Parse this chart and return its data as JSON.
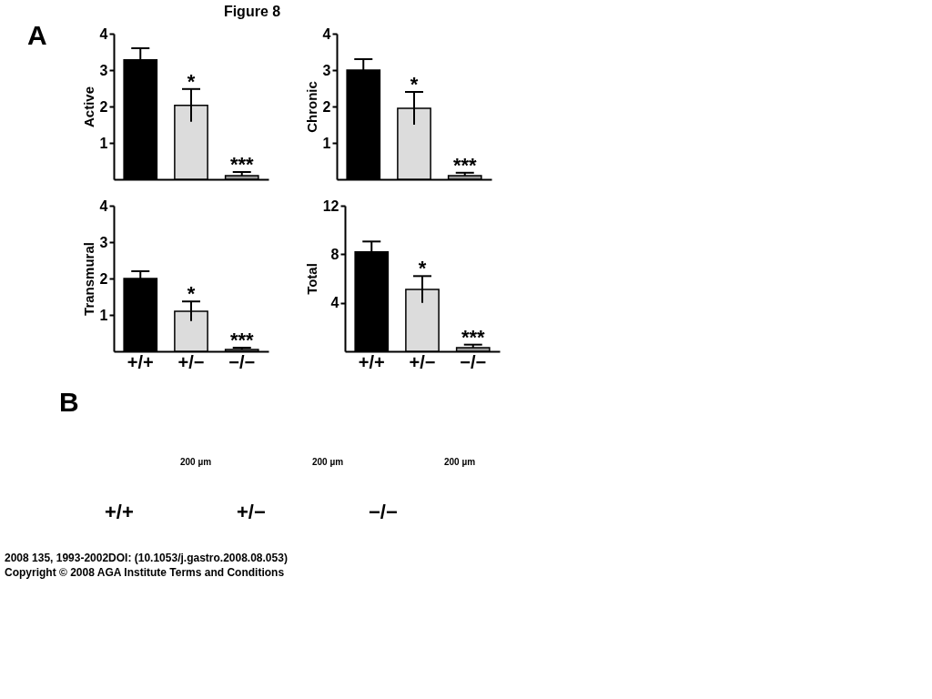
{
  "chart_data": [
    {
      "type": "bar",
      "title": "Figure 8",
      "ylabel": "Active",
      "categories": [
        "+/+",
        "+/−",
        "−/−"
      ],
      "colors": [
        "#000000",
        "#dcdcdc",
        "#999999"
      ],
      "values": [
        3.28,
        2.03,
        0.1
      ],
      "errors": [
        0.32,
        0.45,
        [
          0.1,
          0.2
        ]
      ],
      "ylim": [
        0,
        4
      ],
      "yticks": [
        1,
        2,
        3,
        4
      ],
      "grid": false,
      "tick_labels": "y",
      "annotations": [
        "A",
        {
          "text": "*",
          "x": "+/−",
          "y": 2.48
        },
        {
          "text": "***",
          "x": "−/−",
          "y": 0.2
        }
      ]
    },
    {
      "type": "bar",
      "ylabel": "Chronic",
      "categories": [
        "+/+",
        "+/−",
        "−/−"
      ],
      "colors": [
        "#000000",
        "#dcdcdc",
        "#999999"
      ],
      "values": [
        3.0,
        1.95,
        0.1
      ],
      "errors": [
        0.3,
        0.45,
        [
          0.1,
          0.18
        ]
      ],
      "ylim": [
        0,
        4
      ],
      "yticks": [
        1,
        2,
        3,
        4
      ],
      "grid": false,
      "tick_labels": "y",
      "annotations": [
        {
          "text": "*",
          "x": "+/−",
          "y": 2.4
        },
        {
          "text": "***",
          "x": "−/−",
          "y": 0.18
        }
      ]
    },
    {
      "type": "bar",
      "ylabel": "Transmural",
      "categories": [
        "+/+",
        "+/−",
        "−/−"
      ],
      "colors": [
        "#000000",
        "#dcdcdc",
        "#999999"
      ],
      "values": [
        2.0,
        1.1,
        0.05
      ],
      "errors": [
        0.2,
        0.27,
        [
          0.05,
          0.1
        ]
      ],
      "ylim": [
        0,
        4
      ],
      "yticks": [
        1,
        2,
        3,
        4
      ],
      "grid": false,
      "annotations": [
        {
          "text": "*",
          "x": "+/−",
          "y": 1.37
        },
        {
          "text": "***",
          "x": "−/−",
          "y": 0.1
        }
      ]
    },
    {
      "type": "bar",
      "ylabel": "Total",
      "categories": [
        "+/+",
        "+/−",
        "−/−"
      ],
      "colors": [
        "#000000",
        "#dcdcdc",
        "#999999"
      ],
      "values": [
        8.2,
        5.1,
        0.3
      ],
      "errors": [
        0.85,
        1.1,
        [
          0.3,
          0.55
        ]
      ],
      "ylim": [
        0,
        12
      ],
      "yticks": [
        4,
        8,
        12
      ],
      "grid": false,
      "annotations": [
        {
          "text": "*",
          "x": "+/−",
          "y": 6.2
        },
        {
          "text": "***",
          "x": "−/−",
          "y": 0.55
        }
      ]
    },
    {
      "type": "other",
      "annotations": [
        "B",
        "+/+",
        "200 µm",
        "+/−",
        "200 µm",
        "−/−",
        "200 µm",
        "2008 135, 1993-2002DOI: (10.1053/j.gastro.2008.08.053)",
        "Copyright © 2008 AGA Institute Terms and Conditions"
      ]
    }
  ]
}
